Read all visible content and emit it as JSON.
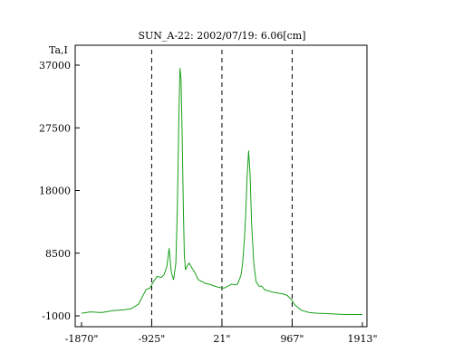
{
  "chart_data": {
    "type": "line",
    "title": "SUN_A-22: 2002/07/19: 6.06[cm]",
    "ylabel": "Ta,I",
    "xlabel": "",
    "x_ticks": [
      "-1870\"",
      "-925\"",
      "21\"",
      "967\"",
      "1913\""
    ],
    "x_tick_values": [
      -1870,
      -925,
      21,
      967,
      1913
    ],
    "y_ticks": [
      "37000",
      "27500",
      "18000",
      "8500",
      "-1000"
    ],
    "y_tick_values": [
      37000,
      27500,
      18000,
      8500,
      -1000
    ],
    "xlim": [
      -1870,
      1913
    ],
    "ylim": [
      -1000,
      37000
    ],
    "dashed_vlines_x": [
      -925,
      21,
      967
    ],
    "grid": false,
    "series_color": "#19a019",
    "series": [
      {
        "x": [
          -1870,
          -1750,
          -1600,
          -1450,
          -1300,
          -1200,
          -1100,
          -1000,
          -950,
          -900,
          -850,
          -800,
          -760,
          -720,
          -690,
          -660,
          -630,
          -600,
          -580,
          -560,
          -545,
          -530,
          -515,
          -500,
          -485,
          -470,
          -450,
          -420,
          -380,
          -340,
          -300,
          -250,
          -200,
          -150,
          -100,
          -50,
          0,
          50,
          100,
          150,
          200,
          230,
          260,
          280,
          300,
          320,
          340,
          360,
          380,
          400,
          420,
          450,
          480,
          520,
          560,
          600,
          650,
          700,
          750,
          800,
          850,
          900,
          967,
          1000,
          1050,
          1100,
          1200,
          1300,
          1400,
          1500,
          1600,
          1700,
          1800,
          1913
        ],
        "y": [
          -600,
          -400,
          -500,
          -200,
          -100,
          100,
          800,
          3000,
          3200,
          4200,
          5000,
          4800,
          5200,
          6500,
          9200,
          5500,
          4500,
          7000,
          15000,
          28000,
          36500,
          35000,
          27000,
          16000,
          8000,
          6000,
          6500,
          7000,
          6200,
          5500,
          4500,
          4200,
          3900,
          3800,
          3600,
          3400,
          3300,
          3200,
          3500,
          3800,
          3700,
          3800,
          4600,
          5300,
          7000,
          10000,
          14000,
          20000,
          24000,
          20500,
          13000,
          7000,
          4200,
          3500,
          3500,
          2900,
          2800,
          2600,
          2500,
          2400,
          2300,
          2100,
          1300,
          700,
          200,
          -200,
          -500,
          -600,
          -650,
          -700,
          -750,
          -800,
          -800,
          -800
        ]
      }
    ]
  }
}
